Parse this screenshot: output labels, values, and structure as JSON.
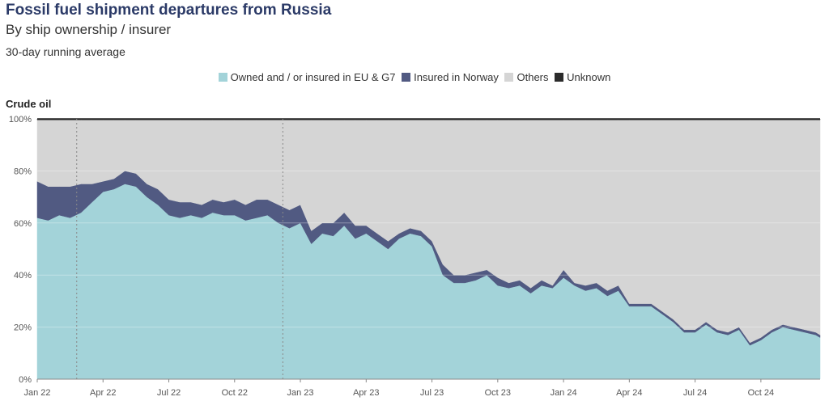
{
  "header": {
    "title": "Fossil fuel shipment departures from Russia",
    "subtitle": "By ship ownership / insurer",
    "note": "30-day running average"
  },
  "legend": [
    {
      "label": "Owned and / or insured in EU & G7",
      "color": "#a3d3d9"
    },
    {
      "label": "Insured in Norway",
      "color": "#515a82"
    },
    {
      "label": "Others",
      "color": "#d5d5d5"
    },
    {
      "label": "Unknown",
      "color": "#2b2b2b"
    }
  ],
  "chart_data": {
    "type": "area",
    "stacked": true,
    "percent": true,
    "panel_title": "Crude oil",
    "x_ticks": [
      "Jan 22",
      "Apr 22",
      "Jul 22",
      "Oct 22",
      "Jan 23",
      "Apr 23",
      "Jul 23",
      "Oct 23",
      "Jan 24",
      "Apr 24",
      "Jul 24",
      "Oct 24"
    ],
    "y_ticks": [
      "0%",
      "20%",
      "40%",
      "60%",
      "80%",
      "100%"
    ],
    "ylim": [
      0,
      100
    ],
    "x_range_months": [
      0,
      35.7
    ],
    "reference_lines_months": [
      1.8,
      11.2
    ],
    "x_months": [
      0,
      0.5,
      1,
      1.5,
      2,
      2.5,
      3,
      3.5,
      4,
      4.5,
      5,
      5.5,
      6,
      6.5,
      7,
      7.5,
      8,
      8.5,
      9,
      9.5,
      10,
      10.5,
      11,
      11.5,
      12,
      12.5,
      13,
      13.5,
      14,
      14.5,
      15,
      15.5,
      16,
      16.5,
      17,
      17.5,
      18,
      18.5,
      19,
      19.5,
      20,
      20.5,
      21,
      21.5,
      22,
      22.5,
      23,
      23.5,
      24,
      24.5,
      25,
      25.5,
      26,
      26.5,
      27,
      27.5,
      28,
      28.5,
      29,
      29.5,
      30,
      30.5,
      31,
      31.5,
      32,
      32.5,
      33,
      33.5,
      34,
      34.5,
      35,
      35.5,
      35.7
    ],
    "series": [
      {
        "name": "Owned and / or insured in EU & G7",
        "values": [
          62,
          61,
          63,
          62,
          64,
          68,
          72,
          73,
          75,
          74,
          70,
          67,
          63,
          62,
          63,
          62,
          64,
          63,
          63,
          61,
          62,
          63,
          60,
          58,
          60,
          52,
          56,
          55,
          59,
          54,
          56,
          53,
          50,
          54,
          56,
          55,
          51,
          40,
          37,
          37,
          38,
          40,
          36,
          35,
          36,
          33,
          36,
          35,
          39,
          36,
          34,
          35,
          32,
          34,
          28,
          28,
          28,
          25,
          22,
          18,
          18,
          21,
          18,
          17,
          19,
          13,
          15,
          18,
          20,
          19,
          18,
          17,
          16
        ]
      },
      {
        "name": "Insured in Norway",
        "values": [
          14,
          13,
          11,
          12,
          11,
          7,
          4,
          4,
          5,
          5,
          5,
          6,
          6,
          6,
          5,
          5,
          5,
          5,
          6,
          6,
          7,
          6,
          7,
          7,
          7,
          5,
          4,
          5,
          5,
          5,
          3,
          3,
          3,
          2,
          2,
          2,
          2,
          4,
          3,
          3,
          3,
          2,
          3,
          2,
          2,
          2,
          2,
          1,
          3,
          1,
          2,
          2,
          2,
          2,
          1,
          1,
          1,
          1,
          1,
          1,
          1,
          1,
          1,
          1,
          1,
          1,
          1,
          1,
          1,
          1,
          1,
          1,
          1
        ]
      },
      {
        "name": "Others",
        "values": [
          23.6,
          25.6,
          25.6,
          25.6,
          24.6,
          24.6,
          23.6,
          22.6,
          19.6,
          20.6,
          24.6,
          26.6,
          30.6,
          31.6,
          31.6,
          32.6,
          30.6,
          31.6,
          30.6,
          32.6,
          30.6,
          30.6,
          32.6,
          34.6,
          32.6,
          42.6,
          39.6,
          39.6,
          35.6,
          40.6,
          40.6,
          43.6,
          46.6,
          43.6,
          41.6,
          42.6,
          46.6,
          55.6,
          59.6,
          59.6,
          58.6,
          57.6,
          60.6,
          62.6,
          61.6,
          64.6,
          61.6,
          63.6,
          57.6,
          62.6,
          63.6,
          62.6,
          65.6,
          63.6,
          70.6,
          70.6,
          70.6,
          73.6,
          76.6,
          80.6,
          80.6,
          77.6,
          80.6,
          81.6,
          79.6,
          85.6,
          83.6,
          80.6,
          78.6,
          79.6,
          80.6,
          81.6,
          82.6
        ]
      },
      {
        "name": "Unknown",
        "values": [
          0.4,
          0.4,
          0.4,
          0.4,
          0.4,
          0.4,
          0.4,
          0.4,
          0.4,
          0.4,
          0.4,
          0.4,
          0.4,
          0.4,
          0.4,
          0.4,
          0.4,
          0.4,
          0.4,
          0.4,
          0.4,
          0.4,
          0.4,
          0.4,
          0.4,
          0.4,
          0.4,
          0.4,
          0.4,
          0.4,
          0.4,
          0.4,
          0.4,
          0.4,
          0.4,
          0.4,
          0.4,
          0.4,
          0.4,
          0.4,
          0.4,
          0.4,
          0.4,
          0.4,
          0.4,
          0.4,
          0.4,
          0.4,
          0.4,
          0.4,
          0.4,
          0.4,
          0.4,
          0.4,
          0.4,
          0.4,
          0.4,
          0.4,
          0.4,
          0.4,
          0.4,
          0.4,
          0.4,
          0.4,
          0.4,
          0.4,
          0.4,
          0.4,
          0.4,
          0.4,
          0.4,
          0.4,
          0.4
        ]
      }
    ]
  }
}
